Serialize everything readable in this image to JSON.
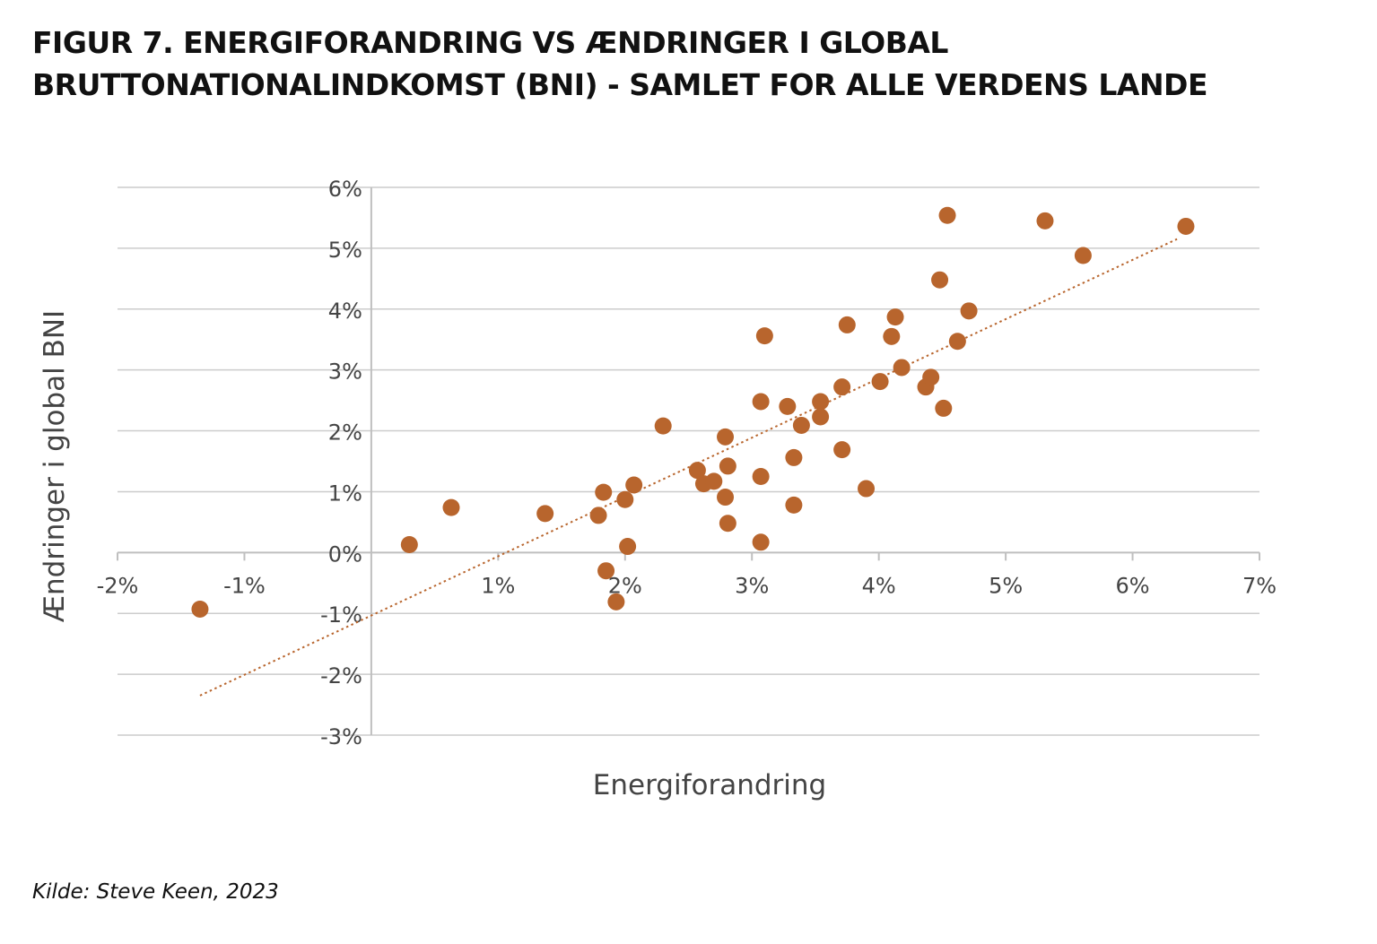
{
  "title_lines": [
    "FIGUR 7. ENERGIFORANDRING VS ÆNDRINGER I GLOBAL",
    "BRUTTONATIONALINDKOMST (BNI) - SAMLET FOR ALLE VERDENS LANDE"
  ],
  "source": "Kilde: Steve Keen, 2023",
  "chart_data": {
    "type": "scatter",
    "title": "FIGUR 7. ENERGIFORANDRING VS ÆNDRINGER I GLOBAL BRUTTONATIONALINDKOMST (BNI) - SAMLET FOR ALLE VERDENS LANDE",
    "xlabel": "Energiforandring",
    "ylabel": "Ændringer i global BNI",
    "xlim": [
      -2,
      7
    ],
    "ylim": [
      -3,
      6
    ],
    "x_ticks": [
      -2,
      -1,
      1,
      2,
      3,
      4,
      5,
      6,
      7
    ],
    "x_tick_labels": [
      "-2%",
      "-1%",
      "1%",
      "2%",
      "3%",
      "4%",
      "5%",
      "6%",
      "7%"
    ],
    "y_ticks": [
      6,
      5,
      4,
      3,
      2,
      1,
      0,
      -1,
      -2,
      -3
    ],
    "y_tick_labels": [
      "6%",
      "5%",
      "4%",
      "3%",
      "2%",
      "1%",
      "0%",
      "-1%",
      "-2%",
      "-3%"
    ],
    "grid": "horizontal",
    "marker_color": "#B8652D",
    "trendline": {
      "style": "dotted",
      "color": "#B8652D",
      "from": [
        -1.35,
        -2.35
      ],
      "to": [
        6.35,
        5.15
      ]
    },
    "points": [
      {
        "x": -1.35,
        "y": -0.93
      },
      {
        "x": 0.3,
        "y": 0.13
      },
      {
        "x": 0.63,
        "y": 0.74
      },
      {
        "x": 1.37,
        "y": 0.64
      },
      {
        "x": 1.79,
        "y": 0.61
      },
      {
        "x": 1.83,
        "y": 0.99
      },
      {
        "x": 1.85,
        "y": -0.3
      },
      {
        "x": 1.93,
        "y": -0.81
      },
      {
        "x": 2.0,
        "y": 0.87
      },
      {
        "x": 2.02,
        "y": 0.1
      },
      {
        "x": 2.07,
        "y": 1.11
      },
      {
        "x": 2.3,
        "y": 2.08
      },
      {
        "x": 2.57,
        "y": 1.35
      },
      {
        "x": 2.62,
        "y": 1.13
      },
      {
        "x": 2.7,
        "y": 1.17
      },
      {
        "x": 2.79,
        "y": 1.9
      },
      {
        "x": 2.79,
        "y": 0.91
      },
      {
        "x": 2.81,
        "y": 1.42
      },
      {
        "x": 2.81,
        "y": 0.48
      },
      {
        "x": 3.07,
        "y": 2.48
      },
      {
        "x": 3.07,
        "y": 1.25
      },
      {
        "x": 3.07,
        "y": 0.17
      },
      {
        "x": 3.1,
        "y": 3.56
      },
      {
        "x": 3.28,
        "y": 2.4
      },
      {
        "x": 3.33,
        "y": 1.56
      },
      {
        "x": 3.33,
        "y": 0.78
      },
      {
        "x": 3.39,
        "y": 2.09
      },
      {
        "x": 3.54,
        "y": 2.48
      },
      {
        "x": 3.54,
        "y": 2.23
      },
      {
        "x": 3.71,
        "y": 2.72
      },
      {
        "x": 3.71,
        "y": 1.69
      },
      {
        "x": 3.75,
        "y": 3.74
      },
      {
        "x": 3.9,
        "y": 1.05
      },
      {
        "x": 4.01,
        "y": 2.81
      },
      {
        "x": 4.1,
        "y": 3.55
      },
      {
        "x": 4.13,
        "y": 3.87
      },
      {
        "x": 4.18,
        "y": 3.04
      },
      {
        "x": 4.37,
        "y": 2.72
      },
      {
        "x": 4.41,
        "y": 2.88
      },
      {
        "x": 4.48,
        "y": 4.48
      },
      {
        "x": 4.51,
        "y": 2.37
      },
      {
        "x": 4.54,
        "y": 5.54
      },
      {
        "x": 4.62,
        "y": 3.47
      },
      {
        "x": 4.71,
        "y": 3.97
      },
      {
        "x": 5.31,
        "y": 5.45
      },
      {
        "x": 5.61,
        "y": 4.88
      },
      {
        "x": 6.42,
        "y": 5.36
      }
    ]
  }
}
